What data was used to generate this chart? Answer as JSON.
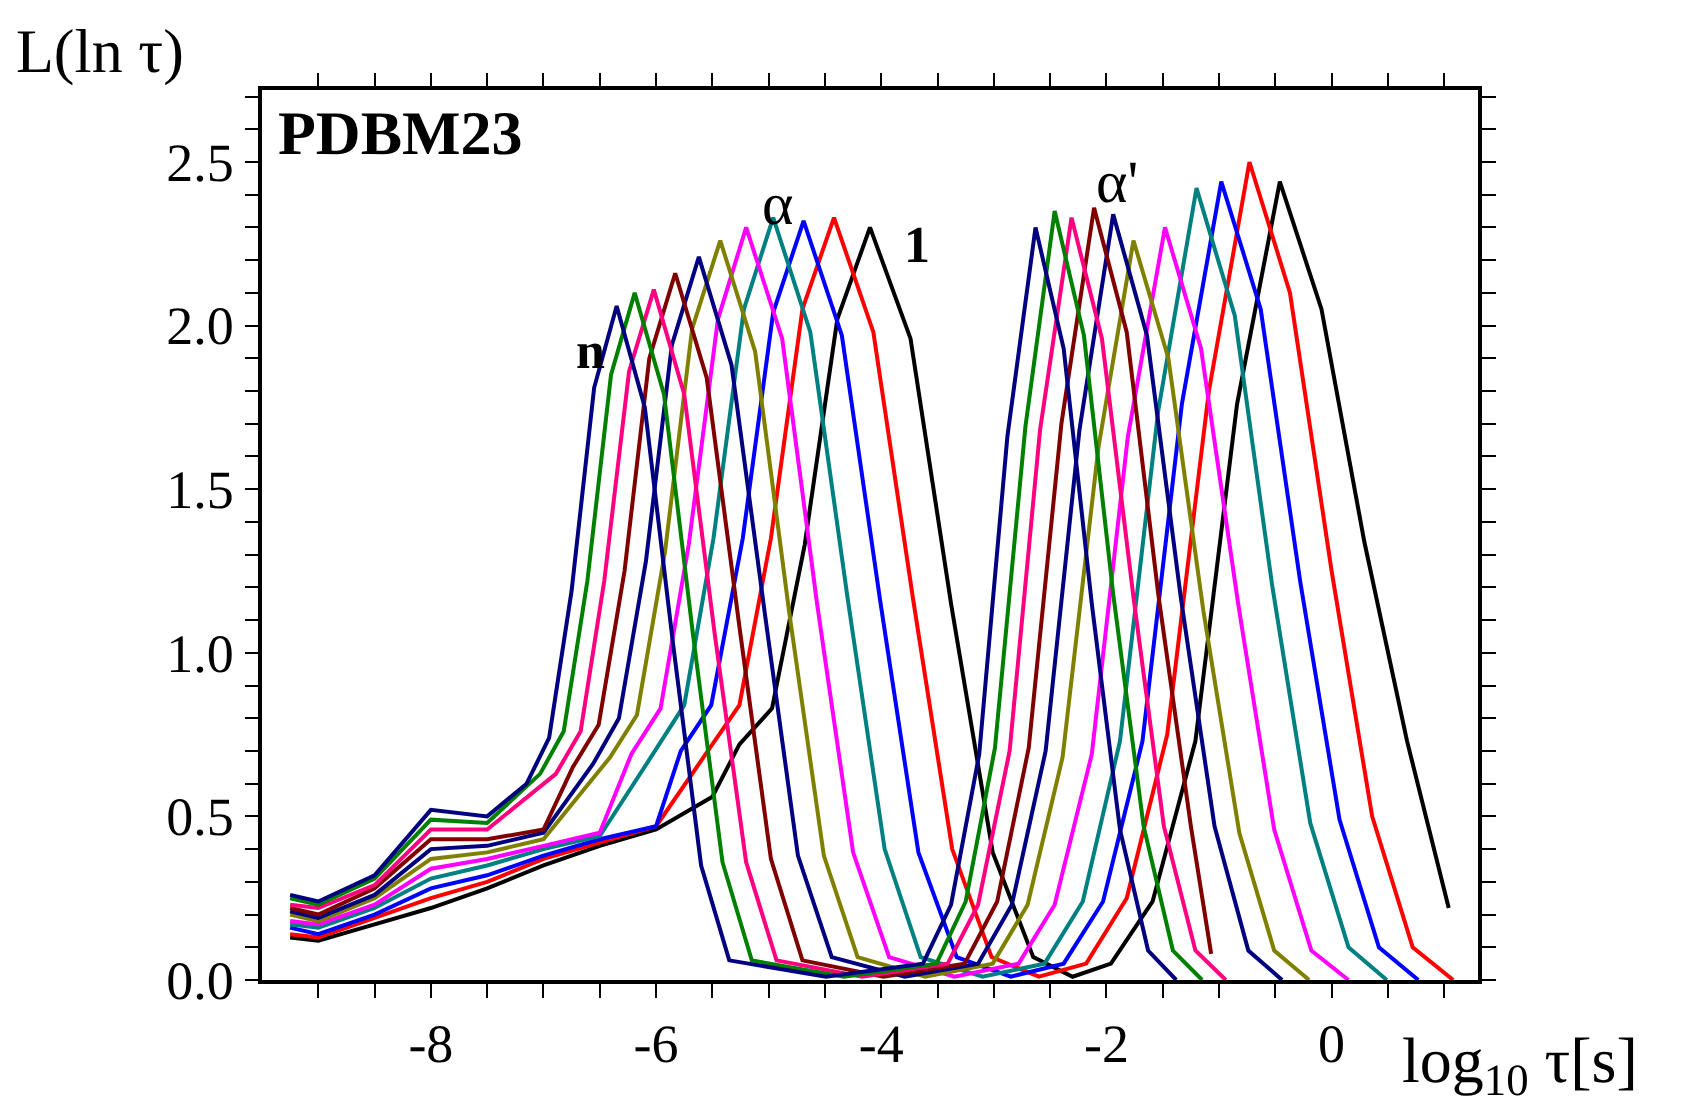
{
  "chart_data": {
    "type": "line",
    "title": "PDBM23",
    "xlabel": "log$_{10}$ τ[s]",
    "ylabel": "L(ln τ)",
    "xlim": [
      -9.5,
      1.3
    ],
    "ylim": [
      0,
      2.72
    ],
    "xticks": [
      {
        "value": -9,
        "label": null
      },
      {
        "value": -8.5,
        "label": null
      },
      -8,
      {
        "value": -7.5,
        "label": null
      },
      {
        "value": -7,
        "label": null
      },
      {
        "value": -6.5,
        "label": null
      },
      -6,
      {
        "value": -5.5,
        "label": null
      },
      {
        "value": -5,
        "label": null
      },
      {
        "value": -4.5,
        "label": null
      },
      -4,
      {
        "value": -3.5,
        "label": null
      },
      {
        "value": -3,
        "label": null
      },
      {
        "value": -2.5,
        "label": null
      },
      -2,
      {
        "value": -1.5,
        "label": null
      },
      {
        "value": -1,
        "label": null
      },
      {
        "value": -0.5,
        "label": null
      },
      0,
      {
        "value": 0.5,
        "label": null
      },
      {
        "value": 1,
        "label": null
      }
    ],
    "yticks": [
      {
        "value": 0,
        "label": "0.0"
      },
      {
        "value": 0.1,
        "label": null
      },
      {
        "value": 0.2,
        "label": null
      },
      {
        "value": 0.3,
        "label": null
      },
      {
        "value": 0.4,
        "label": null
      },
      0.5,
      {
        "value": 0.6,
        "label": null
      },
      {
        "value": 0.7,
        "label": null
      },
      {
        "value": 0.8,
        "label": null
      },
      {
        "value": 0.9,
        "label": null
      },
      {
        "value": 1,
        "label": "1.0"
      },
      {
        "value": 1.1,
        "label": null
      },
      {
        "value": 1.2,
        "label": null
      },
      {
        "value": 1.3,
        "label": null
      },
      {
        "value": 1.4,
        "label": null
      },
      1.5,
      {
        "value": 1.6,
        "label": null
      },
      {
        "value": 1.7,
        "label": null
      },
      {
        "value": 1.8,
        "label": null
      },
      {
        "value": 1.9,
        "label": null
      },
      {
        "value": 2,
        "label": "2.0"
      },
      {
        "value": 2.1,
        "label": null
      },
      {
        "value": 2.2,
        "label": null
      },
      {
        "value": 2.3,
        "label": null
      },
      {
        "value": 2.4,
        "label": null
      },
      2.5,
      {
        "value": 2.6,
        "label": null
      },
      {
        "value": 2.7,
        "label": null
      }
    ],
    "annotations": [
      "α",
      "α'",
      "1",
      "n"
    ],
    "series": [
      {
        "color": "#000000",
        "x": [
          -9.25,
          -9,
          -8.5,
          -8,
          -7.5,
          -7,
          -6.5,
          -6,
          -5.5,
          -5.26,
          -4.97,
          -4.68,
          -4.39,
          -4.1,
          -3.74,
          -3.38,
          -3.01,
          -2.65,
          -2.3,
          -1.96,
          -1.59,
          -1.21,
          -0.84,
          -0.46,
          -0.09,
          0.29,
          0.67,
          1.04
        ],
        "values": [
          0.13,
          0.12,
          0.17,
          0.22,
          0.28,
          0.35,
          0.41,
          0.46,
          0.56,
          0.72,
          0.83,
          1.33,
          2.02,
          2.3,
          1.96,
          1.15,
          0.39,
          0.07,
          0.01,
          0.05,
          0.24,
          0.73,
          1.76,
          2.44,
          2.05,
          1.34,
          0.73,
          0.22
        ]
      },
      {
        "color": "#ff0000",
        "x": [
          -9.25,
          -9,
          -8.5,
          -8,
          -7.5,
          -7,
          -6.5,
          -6,
          -5.54,
          -5.26,
          -4.98,
          -4.7,
          -4.42,
          -4.07,
          -3.72,
          -3.37,
          -3.02,
          -2.6,
          -2.18,
          -1.82,
          -1.46,
          -1.09,
          -0.73,
          -0.37,
          0,
          0.36,
          0.72,
          1.08
        ],
        "values": [
          0.14,
          0.13,
          0.19,
          0.25,
          0.3,
          0.37,
          0.42,
          0.47,
          0.7,
          0.84,
          1.35,
          2.05,
          2.33,
          1.98,
          1.17,
          0.4,
          0.07,
          0.01,
          0.05,
          0.25,
          0.75,
          1.8,
          2.5,
          2.1,
          1.25,
          0.5,
          0.1,
          0
        ]
      },
      {
        "color": "#0000ff",
        "x": [
          -9.25,
          -9,
          -8.5,
          -8,
          -7.5,
          -7,
          -6.5,
          -6,
          -5.78,
          -5.51,
          -5.23,
          -4.96,
          -4.69,
          -4.35,
          -4.01,
          -3.67,
          -3.33,
          -2.85,
          -2.38,
          -2.03,
          -1.68,
          -1.33,
          -0.98,
          -0.63,
          -0.28,
          0.07,
          0.42,
          0.77
        ],
        "values": [
          0.16,
          0.14,
          0.2,
          0.28,
          0.32,
          0.38,
          0.43,
          0.47,
          0.7,
          0.84,
          1.35,
          2.04,
          2.32,
          1.97,
          1.16,
          0.39,
          0.07,
          0.01,
          0.05,
          0.24,
          0.73,
          1.76,
          2.44,
          2.05,
          1.22,
          0.49,
          0.1,
          0
        ]
      },
      {
        "color": "#008080",
        "x": [
          -9.25,
          -9,
          -8.5,
          -8,
          -7.5,
          -7,
          -6.5,
          -6.01,
          -5.75,
          -5.49,
          -5.22,
          -4.96,
          -4.63,
          -4.3,
          -3.97,
          -3.65,
          -3.1,
          -2.55,
          -2.21,
          -1.88,
          -1.54,
          -1.2,
          -0.86,
          -0.53,
          -0.19,
          0.15,
          0.49
        ],
        "values": [
          0.17,
          0.16,
          0.22,
          0.31,
          0.35,
          0.4,
          0.44,
          0.7,
          0.84,
          1.35,
          2.05,
          2.33,
          1.98,
          1.17,
          0.4,
          0.07,
          0.01,
          0.05,
          0.24,
          0.73,
          1.74,
          2.42,
          2.03,
          1.21,
          0.48,
          0.1,
          0
        ]
      },
      {
        "color": "#ff00ff",
        "x": [
          -9.25,
          -9,
          -8.5,
          -8,
          -7.5,
          -7,
          -6.5,
          -6.22,
          -5.96,
          -5.71,
          -5.45,
          -5.2,
          -4.88,
          -4.57,
          -4.25,
          -3.93,
          -3.35,
          -2.78,
          -2.46,
          -2.13,
          -1.81,
          -1.48,
          -1.16,
          -0.83,
          -0.51,
          -0.18,
          0.15
        ],
        "values": [
          0.18,
          0.17,
          0.23,
          0.34,
          0.37,
          0.41,
          0.45,
          0.69,
          0.83,
          1.33,
          2.02,
          2.3,
          1.96,
          1.15,
          0.39,
          0.07,
          0.01,
          0.05,
          0.23,
          0.69,
          1.66,
          2.3,
          1.93,
          1.15,
          0.46,
          0.09,
          0
        ]
      },
      {
        "color": "#808000",
        "x": [
          -9.25,
          -9,
          -8.5,
          -8,
          -7.5,
          -7,
          -6.41,
          -6.17,
          -5.92,
          -5.68,
          -5.43,
          -5.12,
          -4.82,
          -4.51,
          -4.21,
          -3.61,
          -3.01,
          -2.7,
          -2.39,
          -2.07,
          -1.76,
          -1.45,
          -1.14,
          -0.82,
          -0.51,
          -0.2
        ],
        "values": [
          0.2,
          0.18,
          0.25,
          0.37,
          0.39,
          0.43,
          0.68,
          0.81,
          1.31,
          1.99,
          2.26,
          1.92,
          1.13,
          0.38,
          0.07,
          0.01,
          0.05,
          0.23,
          0.68,
          1.63,
          2.26,
          1.9,
          1.13,
          0.45,
          0.09,
          0
        ]
      },
      {
        "color": "#000080",
        "x": [
          -9.25,
          -9,
          -8.5,
          -8,
          -7.5,
          -7,
          -6.56,
          -6.33,
          -6.09,
          -5.86,
          -5.62,
          -5.33,
          -5.03,
          -4.74,
          -4.44,
          -3.79,
          -3.14,
          -2.84,
          -2.54,
          -2.24,
          -1.94,
          -1.64,
          -1.34,
          -1.04,
          -0.74,
          -0.44
        ],
        "values": [
          0.21,
          0.19,
          0.26,
          0.4,
          0.41,
          0.45,
          0.66,
          0.8,
          1.28,
          1.94,
          2.21,
          1.88,
          1.11,
          0.38,
          0.07,
          0.01,
          0.05,
          0.23,
          0.7,
          1.68,
          2.34,
          1.97,
          1.17,
          0.47,
          0.09,
          0
        ]
      },
      {
        "color": "#800000",
        "x": [
          -9.25,
          -9,
          -8.5,
          -8,
          -7.5,
          -7,
          -6.74,
          -6.51,
          -6.28,
          -6.06,
          -5.83,
          -5.55,
          -5.26,
          -4.98,
          -4.7,
          -3.98,
          -3.26,
          -2.97,
          -2.69,
          -2.4,
          -2.11,
          -1.82,
          -1.54,
          -1.25,
          -1.07
        ],
        "values": [
          0.22,
          0.2,
          0.28,
          0.43,
          0.43,
          0.46,
          0.65,
          0.78,
          1.25,
          1.9,
          2.16,
          1.84,
          1.08,
          0.37,
          0.06,
          0.01,
          0.05,
          0.24,
          0.71,
          1.7,
          2.36,
          1.98,
          1.18,
          0.47,
          0.08
        ]
      },
      {
        "color": "#ff0080",
        "x": [
          -9.25,
          -9,
          -8.5,
          -8,
          -7.5,
          -6.89,
          -6.67,
          -6.46,
          -6.24,
          -6.02,
          -5.75,
          -5.48,
          -5.2,
          -4.93,
          -4.17,
          -3.41,
          -3.14,
          -2.86,
          -2.59,
          -2.31,
          -2.04,
          -1.76,
          -1.49,
          -1.21,
          -0.94
        ],
        "values": [
          0.23,
          0.22,
          0.29,
          0.46,
          0.46,
          0.63,
          0.76,
          1.22,
          1.86,
          2.11,
          1.79,
          1.06,
          0.36,
          0.06,
          0.01,
          0.05,
          0.23,
          0.7,
          1.68,
          2.33,
          1.96,
          1.17,
          0.47,
          0.09,
          0
        ]
      },
      {
        "color": "#008000",
        "x": [
          -9.25,
          -9,
          -8.5,
          -8,
          -7.5,
          -7.03,
          -6.82,
          -6.61,
          -6.4,
          -6.19,
          -5.93,
          -5.67,
          -5.41,
          -5.15,
          -4.33,
          -3.51,
          -3.25,
          -2.99,
          -2.72,
          -2.46,
          -2.2,
          -1.94,
          -1.67,
          -1.41,
          -1.15
        ],
        "values": [
          0.25,
          0.23,
          0.31,
          0.49,
          0.48,
          0.63,
          0.76,
          1.22,
          1.85,
          2.1,
          1.79,
          1.05,
          0.36,
          0.06,
          0.01,
          0.05,
          0.24,
          0.71,
          1.69,
          2.35,
          1.97,
          1.18,
          0.47,
          0.09,
          0
        ]
      },
      {
        "color": "#000080",
        "x": [
          -9.25,
          -9,
          -8.5,
          -8,
          -7.5,
          -7.15,
          -6.95,
          -6.75,
          -6.55,
          -6.35,
          -6.1,
          -5.85,
          -5.6,
          -5.35,
          -4.49,
          -3.63,
          -3.38,
          -3.13,
          -2.88,
          -2.63,
          -2.38,
          -2.13,
          -1.88,
          -1.63,
          -1.38
        ],
        "values": [
          0.26,
          0.24,
          0.32,
          0.52,
          0.5,
          0.6,
          0.74,
          1.19,
          1.81,
          2.06,
          1.75,
          1.03,
          0.35,
          0.06,
          0.01,
          0.05,
          0.23,
          0.69,
          1.66,
          2.3,
          1.93,
          1.15,
          0.46,
          0.09,
          0
        ]
      }
    ]
  }
}
